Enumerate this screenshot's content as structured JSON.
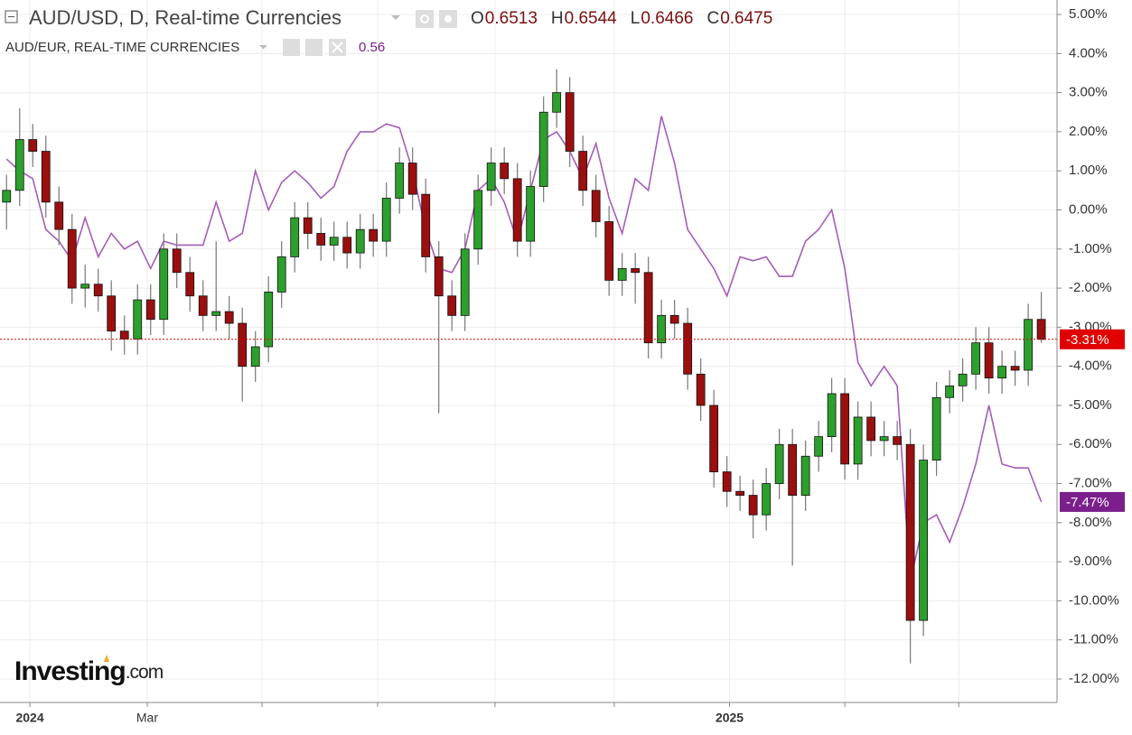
{
  "chart_data": {
    "type": "candlestick",
    "header": {
      "title": "AUD/USD, D, Real-time Currencies",
      "ohlc": [
        {
          "key": "O",
          "value": "0.6513"
        },
        {
          "key": "H",
          "value": "0.6544"
        },
        {
          "key": "L",
          "value": "0.6466"
        },
        {
          "key": "C",
          "value": "0.6475"
        }
      ],
      "compare_title": "AUD/EUR, REAL-TIME CURRENCIES",
      "compare_value": "0.56"
    },
    "logo": {
      "brand": "Investing",
      "suffix": ".com"
    },
    "x": [
      0,
      1,
      2,
      3,
      4,
      5,
      6,
      7,
      8,
      9,
      10,
      11,
      12,
      13,
      14,
      15,
      16,
      17,
      18,
      19,
      20,
      21,
      22,
      23,
      24,
      25,
      26,
      27,
      28,
      29,
      30,
      31,
      32,
      33,
      34,
      35,
      36,
      37,
      38,
      39,
      40,
      41,
      42,
      43,
      44,
      45,
      46,
      47,
      48,
      49,
      50,
      51,
      52,
      53,
      54,
      55,
      56,
      57,
      58,
      59,
      60,
      61,
      62,
      63,
      64,
      65,
      66,
      67,
      68,
      69,
      70,
      71,
      72,
      73,
      74,
      75,
      76,
      77,
      78,
      79
    ],
    "xlim": [
      -0.5,
      80.2
    ],
    "xticks": [
      {
        "value": 1.78,
        "label": "2024"
      },
      {
        "value": 10.74,
        "label": "Mar"
      },
      {
        "value": 19.5,
        "label": null
      },
      {
        "value": 28.33,
        "label": null
      },
      {
        "value": 37.29,
        "label": null
      },
      {
        "value": 46.4,
        "label": null
      },
      {
        "value": 55.2,
        "label": "2025"
      },
      {
        "value": 64.0,
        "label": null
      },
      {
        "value": 72.7,
        "label": null
      }
    ],
    "ylim": [
      -12.6,
      5.37
    ],
    "yticks": [
      {
        "value": 5,
        "label": "5.00%"
      },
      {
        "value": 4,
        "label": "4.00%"
      },
      {
        "value": 3,
        "label": "3.00%"
      },
      {
        "value": 2,
        "label": "2.00%"
      },
      {
        "value": 1,
        "label": "1.00%"
      },
      {
        "value": 0,
        "label": "0.00%"
      },
      {
        "value": -1,
        "label": "-1.00%"
      },
      {
        "value": -2,
        "label": "-2.00%"
      },
      {
        "value": -3,
        "label": "-3.00%"
      },
      {
        "value": -4,
        "label": "-4.00%"
      },
      {
        "value": -5,
        "label": "-5.00%"
      },
      {
        "value": -6,
        "label": "-6.00%"
      },
      {
        "value": -7,
        "label": "-7.00%"
      },
      {
        "value": -8,
        "label": "-8.00%"
      },
      {
        "value": -9,
        "label": "-9.00%"
      },
      {
        "value": -10,
        "label": "-10.00%"
      },
      {
        "value": -11,
        "label": "-11.00%"
      },
      {
        "value": -12,
        "label": "-12.00%"
      }
    ],
    "grid": true,
    "series": [
      {
        "name": "AUD/USD, D, Real-time Currencies",
        "type": "candlestick",
        "color_up": "#2ca02c",
        "color_down": "#9b0f0f",
        "color": "#e00000",
        "open": [
          0.2,
          0.5,
          1.8,
          1.5,
          0.2,
          -0.5,
          -2.0,
          -1.9,
          -2.2,
          -3.1,
          -3.3,
          -2.3,
          -2.8,
          -1.0,
          -1.6,
          -2.2,
          -2.7,
          -2.6,
          -2.9,
          -4.0,
          -3.5,
          -2.1,
          -1.2,
          -0.2,
          -0.6,
          -0.9,
          -0.7,
          -1.1,
          -0.5,
          -0.8,
          0.3,
          1.2,
          0.4,
          -1.2,
          -2.2,
          -2.7,
          -1.0,
          0.5,
          1.2,
          0.8,
          -0.8,
          0.6,
          2.5,
          3.0,
          1.5,
          0.5,
          -0.3,
          -1.8,
          -1.5,
          -1.6,
          -3.4,
          -2.7,
          -2.9,
          -4.2,
          -5.0,
          -6.7,
          -7.2,
          -7.3,
          -7.8,
          -7.0,
          -6.0,
          -7.3,
          -6.3,
          -5.8,
          -4.7,
          -6.5,
          -5.3,
          -5.9,
          -5.8,
          -6.0,
          -10.5,
          -6.4,
          -4.8,
          -4.5,
          -4.2,
          -3.4,
          -4.3,
          -4.0,
          -4.1,
          -2.8
        ],
        "high": [
          0.9,
          2.6,
          2.2,
          1.9,
          0.6,
          -0.1,
          -1.4,
          -1.5,
          -1.8,
          -2.7,
          -1.9,
          -1.9,
          -0.6,
          -0.6,
          -1.2,
          -1.8,
          -0.8,
          -2.2,
          -2.5,
          -3.1,
          -1.7,
          -0.8,
          0.2,
          0.2,
          -0.2,
          -0.3,
          -0.3,
          -0.1,
          -0.1,
          0.7,
          1.6,
          1.6,
          0.8,
          -0.8,
          -1.8,
          -0.6,
          0.9,
          1.6,
          1.6,
          1.2,
          1.0,
          2.9,
          3.6,
          3.4,
          1.9,
          0.9,
          0.1,
          -1.1,
          -1.1,
          -1.2,
          -2.3,
          -2.3,
          -2.5,
          -3.8,
          -4.6,
          -6.3,
          -6.8,
          -6.9,
          -6.6,
          -5.6,
          -5.6,
          -5.9,
          -5.4,
          -4.3,
          -4.3,
          -4.9,
          -4.9,
          -5.4,
          -5.4,
          -5.6,
          -6.0,
          -4.4,
          -4.1,
          -3.8,
          -3.0,
          -3.0,
          -3.6,
          -3.6,
          -2.4,
          -2.1
        ],
        "low": [
          -0.5,
          0.1,
          1.1,
          -0.2,
          -0.9,
          -2.4,
          -2.5,
          -2.6,
          -3.6,
          -3.7,
          -3.7,
          -3.2,
          -3.2,
          -2.0,
          -2.6,
          -3.1,
          -3.1,
          -3.3,
          -4.9,
          -4.4,
          -3.9,
          -2.5,
          -1.6,
          -1.0,
          -1.3,
          -1.3,
          -1.5,
          -1.5,
          -1.2,
          -1.2,
          -0.1,
          0.0,
          -1.6,
          -5.2,
          -3.1,
          -3.1,
          -1.4,
          0.1,
          0.4,
          -1.2,
          -1.2,
          0.2,
          2.1,
          1.1,
          0.1,
          -0.7,
          -2.2,
          -2.2,
          -2.4,
          -3.8,
          -3.8,
          -3.3,
          -4.6,
          -5.4,
          -7.1,
          -7.6,
          -7.7,
          -8.4,
          -8.2,
          -7.4,
          -9.1,
          -7.7,
          -6.7,
          -6.2,
          -6.9,
          -6.9,
          -6.3,
          -6.3,
          -6.4,
          -11.6,
          -10.9,
          -6.8,
          -5.2,
          -4.9,
          -4.6,
          -4.7,
          -4.7,
          -4.5,
          -4.5,
          -3.4
        ],
        "close": [
          0.5,
          1.8,
          1.5,
          0.2,
          -0.5,
          -2.0,
          -1.9,
          -2.2,
          -3.1,
          -3.3,
          -2.3,
          -2.8,
          -1.0,
          -1.6,
          -2.2,
          -2.7,
          -2.6,
          -2.9,
          -4.0,
          -3.5,
          -2.1,
          -1.2,
          -0.2,
          -0.6,
          -0.9,
          -0.7,
          -1.1,
          -0.5,
          -0.8,
          0.3,
          1.2,
          0.4,
          -1.2,
          -2.2,
          -2.7,
          -1.0,
          0.5,
          1.2,
          0.8,
          -0.8,
          0.6,
          2.5,
          3.0,
          1.5,
          0.5,
          -0.3,
          -1.8,
          -1.5,
          -1.6,
          -3.4,
          -2.7,
          -2.9,
          -4.2,
          -5.0,
          -6.7,
          -7.2,
          -7.3,
          -7.8,
          -7.0,
          -6.0,
          -7.3,
          -6.3,
          -5.8,
          -4.7,
          -6.5,
          -5.3,
          -5.9,
          -5.8,
          -6.0,
          -10.5,
          -6.4,
          -4.8,
          -4.5,
          -4.2,
          -3.4,
          -4.3,
          -4.0,
          -4.1,
          -2.8,
          -3.31
        ],
        "last_value": -3.31,
        "last_value_label": "-3.31%"
      },
      {
        "name": "AUD/EUR, REAL-TIME CURRENCIES",
        "type": "line",
        "color": "#a55db8",
        "values": [
          1.3,
          1.0,
          0.8,
          -0.5,
          -0.8,
          -1.3,
          -0.2,
          -1.2,
          -0.6,
          -1.0,
          -0.8,
          -1.5,
          -0.8,
          -0.9,
          -0.9,
          -0.9,
          0.2,
          -0.8,
          -0.6,
          1.0,
          0.0,
          0.7,
          1.0,
          0.7,
          0.3,
          0.6,
          1.5,
          2.0,
          2.0,
          2.2,
          2.1,
          1.0,
          -0.5,
          -1.5,
          -1.6,
          -1.0,
          0.5,
          0.8,
          0.2,
          -0.8,
          0.5,
          1.8,
          2.0,
          1.5,
          0.8,
          1.7,
          0.3,
          -0.6,
          0.8,
          0.5,
          2.4,
          1.2,
          -0.5,
          -1.0,
          -1.5,
          -2.2,
          -1.2,
          -1.3,
          -1.2,
          -1.7,
          -1.7,
          -0.8,
          -0.5,
          0.0,
          -1.5,
          -3.9,
          -4.5,
          -4.0,
          -4.5,
          -9.5,
          -8.0,
          -7.8,
          -8.5,
          -7.6,
          -6.5,
          -5.0,
          -6.5,
          -6.6,
          -6.6,
          -7.47
        ],
        "last_value": -7.47,
        "last_value_label": "-7.47%",
        "label_color": "#7b1f8c"
      }
    ]
  }
}
